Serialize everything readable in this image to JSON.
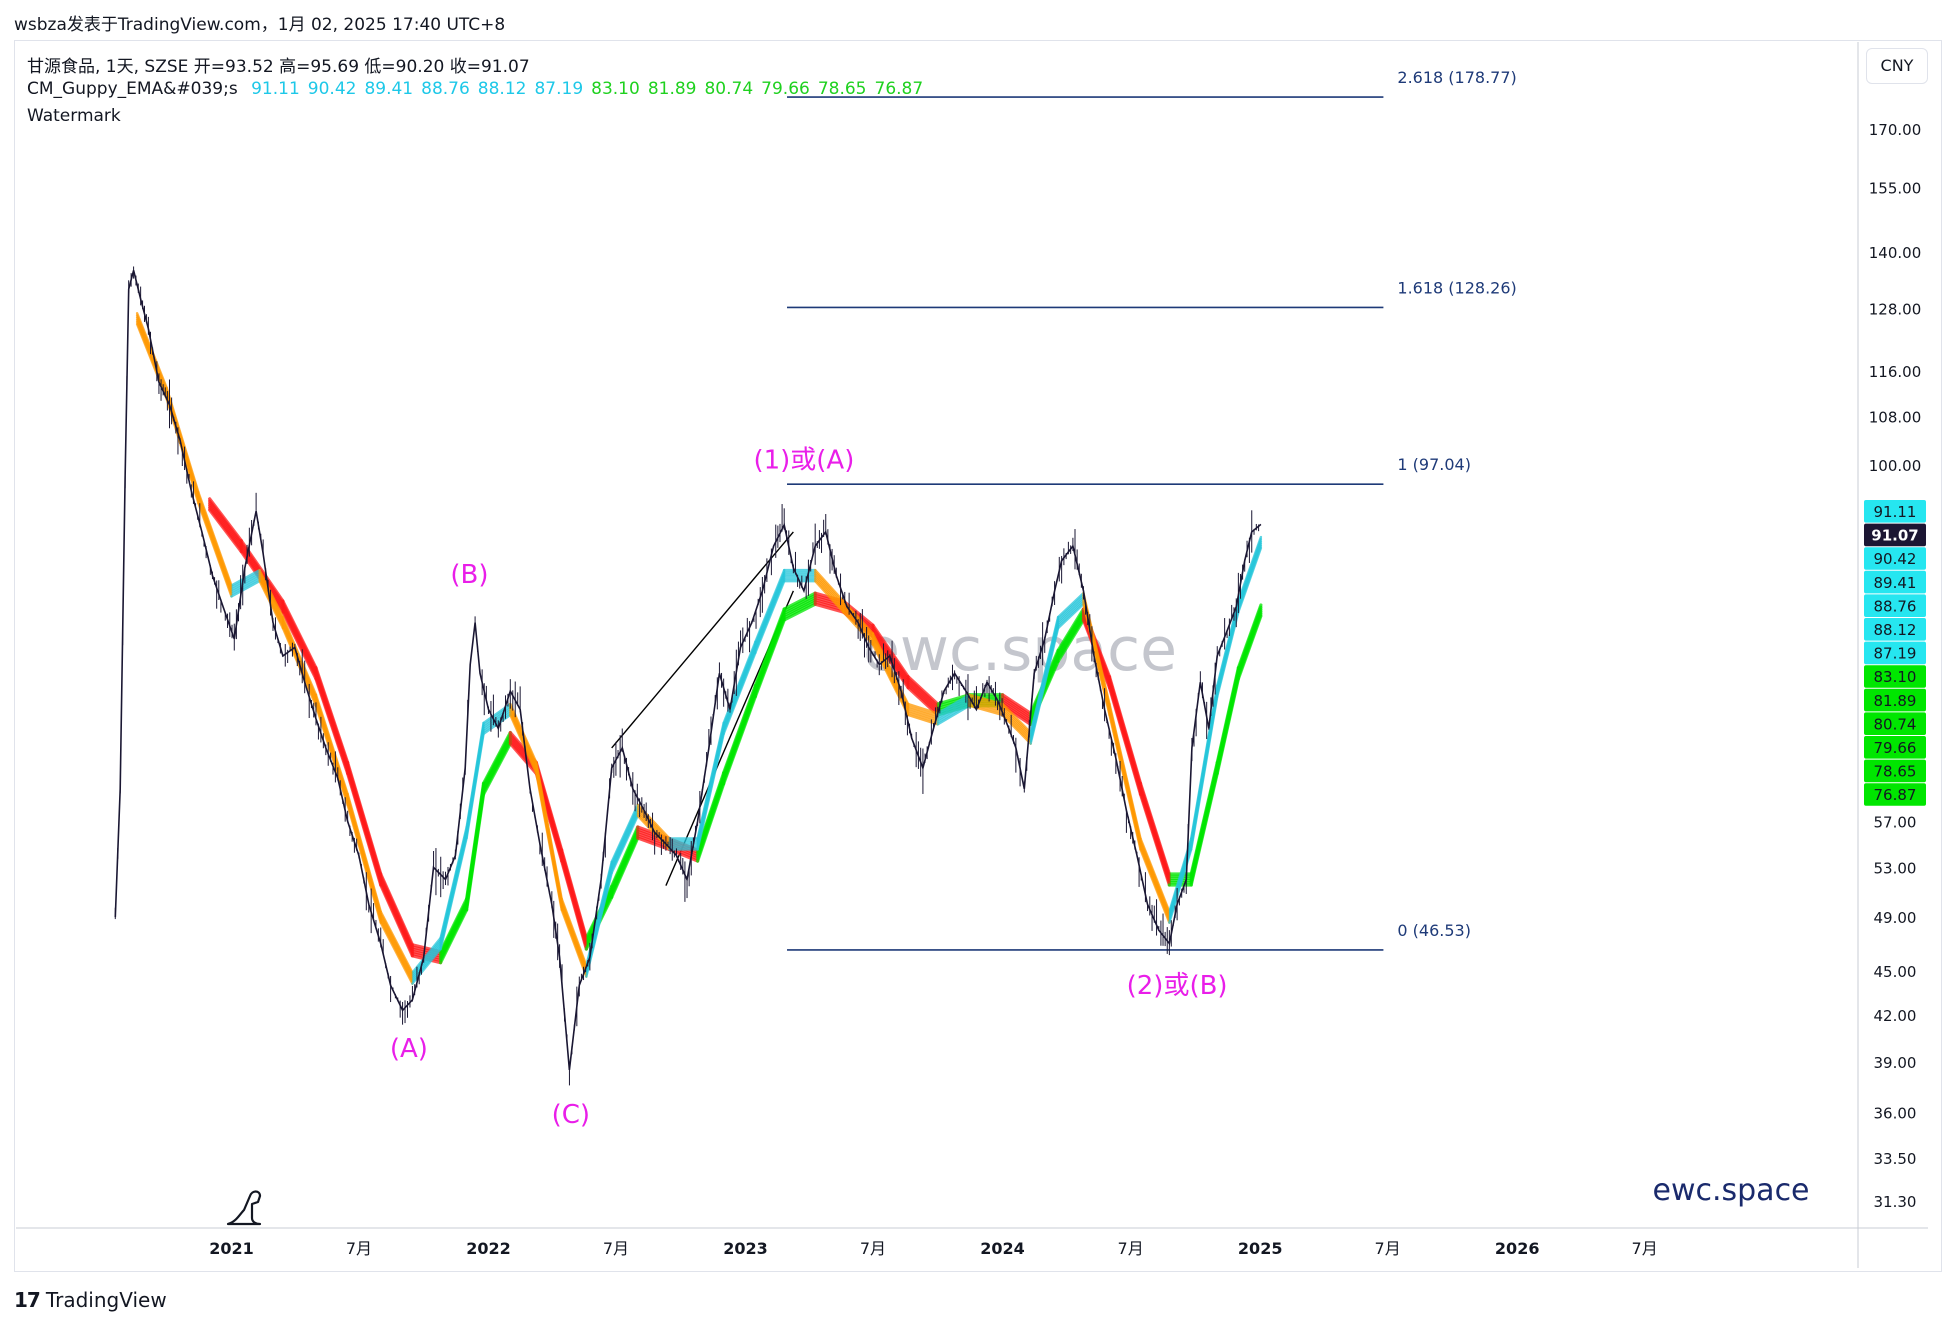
{
  "caption": "wsbza发表于TradingView.com，1月 02, 2025 17:40 UTC+8",
  "legend": {
    "symbol_line": "甘源食品, 1天, SZSE  开=93.52  高=95.69  低=90.20  收=91.07",
    "indicator_name": "CM_Guppy_EMA&#039;s",
    "indicator_values": [
      "91.11",
      "90.42",
      "89.41",
      "88.76",
      "88.12",
      "87.19",
      "83.10",
      "81.89",
      "80.74",
      "79.66",
      "78.65",
      "76.87"
    ],
    "watermark_label": "Watermark"
  },
  "currency": "CNY",
  "tradingview_brand": "TradingView",
  "brand_mark": "17",
  "watermark_text": "ewc.space",
  "site_text": "ewc.space",
  "colors": {
    "ema_fast_up": "#26c6da",
    "ema_slow_up": "#00e600",
    "ema_fast_down": "#ff9800",
    "ema_slow_down": "#ff1a1a",
    "ema_neutral": "#888888",
    "wave_label": "#e91ee9",
    "fib_line": "#1e3a78",
    "candle": "#1a1733",
    "price_tag": "#1c1633"
  },
  "chart_data": {
    "type": "line",
    "y_scale": "log",
    "ylim": [
      30.0,
      195.0
    ],
    "x_range": [
      "2020-03-01",
      "2027-04-30"
    ],
    "y_ticks": [
      "170.00",
      "155.00",
      "140.00",
      "128.00",
      "116.00",
      "108.00",
      "100.00",
      "57.00",
      "53.00",
      "49.00",
      "45.00",
      "42.00",
      "39.00",
      "36.00",
      "33.50",
      "31.30"
    ],
    "x_ticks": [
      {
        "label": "2021",
        "date": "2021-01-01",
        "bold": true
      },
      {
        "label": "7月",
        "date": "2021-07-01",
        "bold": false
      },
      {
        "label": "2022",
        "date": "2022-01-01",
        "bold": true
      },
      {
        "label": "7月",
        "date": "2022-07-01",
        "bold": false
      },
      {
        "label": "2023",
        "date": "2023-01-01",
        "bold": true
      },
      {
        "label": "7月",
        "date": "2023-07-01",
        "bold": false
      },
      {
        "label": "2024",
        "date": "2024-01-01",
        "bold": true
      },
      {
        "label": "7月",
        "date": "2024-07-01",
        "bold": false
      },
      {
        "label": "2025",
        "date": "2025-01-01",
        "bold": true
      },
      {
        "label": "7月",
        "date": "2025-07-01",
        "bold": false
      },
      {
        "label": "2026",
        "date": "2026-01-01",
        "bold": true
      },
      {
        "label": "7月",
        "date": "2026-07-01",
        "bold": false
      }
    ],
    "price_series": [
      [
        "2020-07-20",
        49.0
      ],
      [
        "2020-07-27",
        60.0
      ],
      [
        "2020-08-03",
        98.0
      ],
      [
        "2020-08-08",
        132.0
      ],
      [
        "2020-08-15",
        136.0
      ],
      [
        "2020-08-25",
        130.0
      ],
      [
        "2020-09-05",
        124.0
      ],
      [
        "2020-09-20",
        114.0
      ],
      [
        "2020-10-05",
        110.0
      ],
      [
        "2020-10-20",
        104.0
      ],
      [
        "2020-11-05",
        96.0
      ],
      [
        "2020-11-20",
        90.0
      ],
      [
        "2020-12-05",
        84.0
      ],
      [
        "2020-12-20",
        80.0
      ],
      [
        "2021-01-05",
        76.0
      ],
      [
        "2021-01-20",
        85.0
      ],
      [
        "2021-02-05",
        93.0
      ],
      [
        "2021-02-15",
        87.0
      ],
      [
        "2021-03-01",
        78.0
      ],
      [
        "2021-03-15",
        74.0
      ],
      [
        "2021-04-01",
        75.0
      ],
      [
        "2021-04-15",
        71.0
      ],
      [
        "2021-05-01",
        67.0
      ],
      [
        "2021-05-15",
        64.0
      ],
      [
        "2021-06-01",
        61.0
      ],
      [
        "2021-06-15",
        57.0
      ],
      [
        "2021-07-01",
        54.0
      ],
      [
        "2021-07-15",
        50.0
      ],
      [
        "2021-08-01",
        47.0
      ],
      [
        "2021-08-15",
        44.0
      ],
      [
        "2021-09-01",
        42.3
      ],
      [
        "2021-09-15",
        43.0
      ],
      [
        "2021-10-01",
        46.0
      ],
      [
        "2021-10-15",
        53.0
      ],
      [
        "2021-11-01",
        52.0
      ],
      [
        "2021-11-15",
        54.0
      ],
      [
        "2021-11-29",
        62.0
      ],
      [
        "2021-12-06",
        73.0
      ],
      [
        "2021-12-13",
        78.0
      ],
      [
        "2021-12-20",
        72.0
      ],
      [
        "2022-01-01",
        68.0
      ],
      [
        "2022-01-15",
        66.0
      ],
      [
        "2022-02-01",
        70.0
      ],
      [
        "2022-02-15",
        68.0
      ],
      [
        "2022-03-01",
        60.0
      ],
      [
        "2022-03-15",
        55.0
      ],
      [
        "2022-04-01",
        50.0
      ],
      [
        "2022-04-12",
        46.0
      ],
      [
        "2022-04-26",
        38.5
      ],
      [
        "2022-05-10",
        44.0
      ],
      [
        "2022-05-25",
        46.0
      ],
      [
        "2022-06-10",
        52.0
      ],
      [
        "2022-06-25",
        62.0
      ],
      [
        "2022-07-10",
        64.0
      ],
      [
        "2022-07-25",
        60.0
      ],
      [
        "2022-08-10",
        58.0
      ],
      [
        "2022-08-25",
        56.0
      ],
      [
        "2022-09-10",
        55.0
      ],
      [
        "2022-09-25",
        54.0
      ],
      [
        "2022-10-10",
        52.0
      ],
      [
        "2022-10-25",
        57.0
      ],
      [
        "2022-11-10",
        64.0
      ],
      [
        "2022-11-25",
        72.0
      ],
      [
        "2022-12-10",
        68.0
      ],
      [
        "2022-12-25",
        75.0
      ],
      [
        "2023-01-10",
        78.0
      ],
      [
        "2023-01-25",
        82.0
      ],
      [
        "2023-02-10",
        88.0
      ],
      [
        "2023-02-25",
        91.0
      ],
      [
        "2023-03-10",
        85.0
      ],
      [
        "2023-03-25",
        82.0
      ],
      [
        "2023-04-10",
        88.0
      ],
      [
        "2023-04-25",
        90.0
      ],
      [
        "2023-05-10",
        84.0
      ],
      [
        "2023-05-25",
        80.0
      ],
      [
        "2023-06-10",
        78.0
      ],
      [
        "2023-06-25",
        75.0
      ],
      [
        "2023-07-10",
        73.0
      ],
      [
        "2023-07-25",
        74.0
      ],
      [
        "2023-08-10",
        70.0
      ],
      [
        "2023-08-25",
        65.0
      ],
      [
        "2023-09-10",
        62.0
      ],
      [
        "2023-09-25",
        66.0
      ],
      [
        "2023-10-10",
        70.0
      ],
      [
        "2023-10-25",
        72.0
      ],
      [
        "2023-11-10",
        70.0
      ],
      [
        "2023-11-25",
        68.0
      ],
      [
        "2023-12-10",
        71.0
      ],
      [
        "2023-12-25",
        69.0
      ],
      [
        "2024-01-10",
        66.0
      ],
      [
        "2024-01-20",
        64.0
      ],
      [
        "2024-02-01",
        60.0
      ],
      [
        "2024-02-15",
        72.0
      ],
      [
        "2024-03-01",
        76.0
      ],
      [
        "2024-03-15",
        82.0
      ],
      [
        "2024-03-25",
        86.0
      ],
      [
        "2024-04-10",
        88.0
      ],
      [
        "2024-04-25",
        82.0
      ],
      [
        "2024-05-10",
        74.0
      ],
      [
        "2024-05-25",
        68.0
      ],
      [
        "2024-06-10",
        63.0
      ],
      [
        "2024-06-25",
        58.0
      ],
      [
        "2024-07-10",
        54.0
      ],
      [
        "2024-07-25",
        50.0
      ],
      [
        "2024-08-10",
        48.0
      ],
      [
        "2024-08-25",
        47.0
      ],
      [
        "2024-09-05",
        50.0
      ],
      [
        "2024-09-18",
        52.0
      ],
      [
        "2024-09-26",
        64.0
      ],
      [
        "2024-10-08",
        71.0
      ],
      [
        "2024-10-20",
        66.0
      ],
      [
        "2024-11-01",
        74.0
      ],
      [
        "2024-11-15",
        77.0
      ],
      [
        "2024-11-28",
        80.0
      ],
      [
        "2024-12-10",
        86.0
      ],
      [
        "2024-12-20",
        90.0
      ],
      [
        "2025-01-02",
        91.07
      ]
    ],
    "ema_fast_series": [
      [
        "2020-08-20",
        126.0
      ],
      [
        "2020-10-01",
        112.0
      ],
      [
        "2020-11-15",
        95.0
      ],
      [
        "2021-01-01",
        82.0
      ],
      [
        "2021-02-10",
        84.0
      ],
      [
        "2021-03-15",
        78.0
      ],
      [
        "2021-05-01",
        69.0
      ],
      [
        "2021-06-15",
        59.0
      ],
      [
        "2021-08-01",
        49.0
      ],
      [
        "2021-09-15",
        44.5
      ],
      [
        "2021-10-25",
        47.0
      ],
      [
        "2021-12-01",
        56.0
      ],
      [
        "2021-12-25",
        66.0
      ],
      [
        "2022-02-01",
        68.0
      ],
      [
        "2022-03-10",
        62.0
      ],
      [
        "2022-04-15",
        50.0
      ],
      [
        "2022-05-20",
        45.0
      ],
      [
        "2022-06-25",
        53.0
      ],
      [
        "2022-08-01",
        58.0
      ],
      [
        "2022-09-15",
        55.0
      ],
      [
        "2022-10-25",
        55.0
      ],
      [
        "2022-12-01",
        66.0
      ],
      [
        "2023-01-15",
        75.0
      ],
      [
        "2023-02-25",
        84.0
      ],
      [
        "2023-04-10",
        84.0
      ],
      [
        "2023-05-20",
        80.0
      ],
      [
        "2023-07-01",
        76.0
      ],
      [
        "2023-08-20",
        68.0
      ],
      [
        "2023-10-01",
        67.0
      ],
      [
        "2023-11-15",
        69.0
      ],
      [
        "2024-01-01",
        68.0
      ],
      [
        "2024-02-10",
        65.0
      ],
      [
        "2024-03-20",
        78.0
      ],
      [
        "2024-04-25",
        81.0
      ],
      [
        "2024-06-01",
        68.0
      ],
      [
        "2024-07-15",
        55.0
      ],
      [
        "2024-08-25",
        49.0
      ],
      [
        "2024-09-25",
        55.0
      ],
      [
        "2024-11-01",
        70.0
      ],
      [
        "2024-12-01",
        80.0
      ],
      [
        "2025-01-02",
        88.5
      ]
    ],
    "ema_slow_series": [
      [
        "2020-12-01",
        94.0
      ],
      [
        "2021-01-15",
        88.0
      ],
      [
        "2021-03-15",
        80.0
      ],
      [
        "2021-05-01",
        72.0
      ],
      [
        "2021-06-15",
        62.0
      ],
      [
        "2021-08-01",
        52.0
      ],
      [
        "2021-09-15",
        46.5
      ],
      [
        "2021-10-25",
        46.0
      ],
      [
        "2021-12-01",
        50.0
      ],
      [
        "2021-12-25",
        60.0
      ],
      [
        "2022-02-01",
        65.0
      ],
      [
        "2022-03-10",
        62.0
      ],
      [
        "2022-04-15",
        54.0
      ],
      [
        "2022-05-20",
        47.0
      ],
      [
        "2022-06-25",
        51.0
      ],
      [
        "2022-08-01",
        56.0
      ],
      [
        "2022-09-15",
        55.0
      ],
      [
        "2022-10-25",
        54.0
      ],
      [
        "2022-12-01",
        61.0
      ],
      [
        "2023-01-15",
        70.0
      ],
      [
        "2023-02-25",
        79.0
      ],
      [
        "2023-04-10",
        81.0
      ],
      [
        "2023-05-20",
        80.0
      ],
      [
        "2023-07-01",
        77.0
      ],
      [
        "2023-08-20",
        71.0
      ],
      [
        "2023-10-01",
        68.0
      ],
      [
        "2023-11-15",
        69.0
      ],
      [
        "2024-01-01",
        69.0
      ],
      [
        "2024-02-10",
        67.0
      ],
      [
        "2024-03-20",
        74.0
      ],
      [
        "2024-04-25",
        79.0
      ],
      [
        "2024-06-01",
        71.0
      ],
      [
        "2024-07-15",
        60.0
      ],
      [
        "2024-08-25",
        52.0
      ],
      [
        "2024-09-25",
        52.0
      ],
      [
        "2024-11-01",
        62.0
      ],
      [
        "2024-12-01",
        72.0
      ],
      [
        "2025-01-02",
        79.5
      ]
    ],
    "fib_levels": [
      {
        "label": "2.618 (178.77)",
        "price": 178.77
      },
      {
        "label": "1.618 (128.26)",
        "price": 128.26
      },
      {
        "label": "1 (97.04)",
        "price": 97.04
      },
      {
        "label": "0 (46.53)",
        "price": 46.53
      }
    ],
    "fib_x_range": [
      "2023-03-01",
      "2025-06-25"
    ],
    "wave_labels": [
      {
        "text": "(A)",
        "date": "2021-09-10",
        "price": 39.3
      },
      {
        "text": "(B)",
        "date": "2021-12-05",
        "price": 83.0
      },
      {
        "text": "(C)",
        "date": "2022-04-28",
        "price": 35.4
      },
      {
        "text": "(1)或(A)",
        "date": "2023-03-25",
        "price": 99.5
      },
      {
        "text": "(2)或(B)",
        "date": "2024-09-05",
        "price": 43.4
      }
    ],
    "trend_lines": [
      {
        "from": [
          "2022-06-25",
          64.0
        ],
        "to": [
          "2023-03-10",
          90.0
        ]
      },
      {
        "from": [
          "2022-09-10",
          51.5
        ],
        "to": [
          "2023-03-10",
          82.0
        ]
      }
    ],
    "price_tags": [
      {
        "text": "91.11",
        "price": 91.11,
        "color": "#26e6f0"
      },
      {
        "text": "91.07",
        "price": 91.07,
        "color": "#1c1633"
      },
      {
        "text": "90.42",
        "price": 90.42,
        "color": "#26e6f0"
      },
      {
        "text": "89.41",
        "price": 89.41,
        "color": "#26e6f0"
      },
      {
        "text": "88.76",
        "price": 88.76,
        "color": "#26e6f0"
      },
      {
        "text": "88.12",
        "price": 88.12,
        "color": "#26e6f0"
      },
      {
        "text": "87.19",
        "price": 87.19,
        "color": "#26e6f0"
      },
      {
        "text": "83.10",
        "price": 83.1,
        "color": "#00e600"
      },
      {
        "text": "81.89",
        "price": 81.89,
        "color": "#00e600"
      },
      {
        "text": "80.74",
        "price": 80.74,
        "color": "#00e600"
      },
      {
        "text": "79.66",
        "price": 79.66,
        "color": "#00e600"
      },
      {
        "text": "78.65",
        "price": 78.65,
        "color": "#00e600"
      },
      {
        "text": "76.87",
        "price": 76.87,
        "color": "#00e600"
      }
    ]
  }
}
